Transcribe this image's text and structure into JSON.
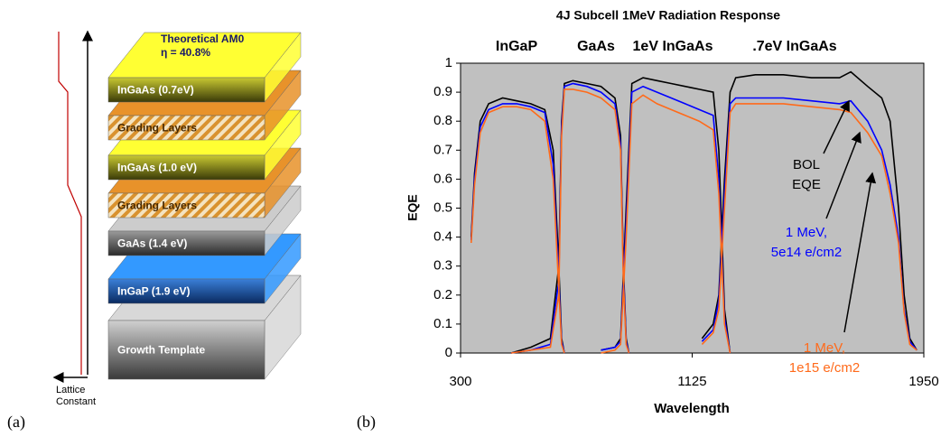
{
  "diagram": {
    "panel_label": "(a)",
    "top_label": [
      "Theoretical AM0",
      "η = 40.8%"
    ],
    "layers": [
      "InGaAs (0.7eV)",
      "Grading Layers",
      "InGaAs (1.0 eV)",
      "Grading Layers",
      "GaAs  (1.4 eV)",
      "InGaP  (1.9 eV)",
      "Growth Template"
    ],
    "lattice_label": [
      "Lattice",
      "Constant"
    ]
  },
  "chart_data": {
    "type": "line",
    "panel_label": "(b)",
    "title": "4J Subcell 1MeV Radiation Response",
    "subcell_labels": [
      "InGaP",
      "GaAs",
      "1eV InGaAs",
      ".7eV InGaAs"
    ],
    "x_label": "Wavelength",
    "y_label": "EQE",
    "xlim": [
      300,
      1950
    ],
    "xticks": [
      300,
      1125,
      1950
    ],
    "ylim": [
      0,
      1
    ],
    "yticks": [
      0,
      0.1,
      0.2,
      0.3,
      0.4,
      0.5,
      0.6,
      0.7,
      0.8,
      0.9,
      1
    ],
    "background": "#c0c0c0",
    "x": [
      338,
      350,
      370,
      400,
      450,
      500,
      550,
      600,
      630,
      650,
      660,
      670,
      null,
      480,
      550,
      620,
      650,
      660,
      670,
      700,
      750,
      800,
      850,
      870,
      880,
      890,
      900,
      null,
      800,
      850,
      870,
      890,
      910,
      950,
      1000,
      1050,
      1100,
      1150,
      1200,
      1220,
      1240,
      1260,
      null,
      1160,
      1200,
      1220,
      1240,
      1260,
      1280,
      1350,
      1450,
      1550,
      1650,
      1690,
      1750,
      1800,
      1830,
      1860,
      1880,
      1900,
      1925
    ],
    "series": [
      {
        "label": [
          "BOL",
          "EQE"
        ],
        "color": "#000000",
        "values": [
          0.4,
          0.62,
          0.8,
          0.86,
          0.88,
          0.87,
          0.86,
          0.84,
          0.7,
          0.3,
          0.05,
          0,
          null,
          0,
          0.02,
          0.05,
          0.3,
          0.8,
          0.93,
          0.94,
          0.93,
          0.92,
          0.88,
          0.75,
          0.3,
          0.05,
          0,
          null,
          0.01,
          0.02,
          0.05,
          0.5,
          0.93,
          0.95,
          0.94,
          0.93,
          0.92,
          0.91,
          0.9,
          0.7,
          0.15,
          0,
          null,
          0.05,
          0.1,
          0.2,
          0.6,
          0.9,
          0.95,
          0.96,
          0.96,
          0.95,
          0.95,
          0.97,
          0.92,
          0.88,
          0.8,
          0.5,
          0.2,
          0.05,
          0.01
        ]
      },
      {
        "label": [
          "1 MeV,",
          "5e14 e/cm2"
        ],
        "color": "#0000ff",
        "values": [
          0.39,
          0.6,
          0.78,
          0.84,
          0.86,
          0.86,
          0.85,
          0.83,
          0.65,
          0.25,
          0.04,
          0,
          null,
          0,
          0.01,
          0.03,
          0.25,
          0.78,
          0.92,
          0.93,
          0.92,
          0.9,
          0.86,
          0.72,
          0.28,
          0.04,
          0,
          null,
          0.01,
          0.02,
          0.04,
          0.45,
          0.9,
          0.92,
          0.9,
          0.88,
          0.86,
          0.84,
          0.82,
          0.6,
          0.12,
          0,
          null,
          0.04,
          0.08,
          0.18,
          0.55,
          0.86,
          0.88,
          0.88,
          0.88,
          0.87,
          0.86,
          0.87,
          0.8,
          0.7,
          0.58,
          0.4,
          0.15,
          0.04,
          0.01
        ]
      },
      {
        "label": [
          "1 MeV,",
          "1e15 e/cm2"
        ],
        "color": "#ff6a1a",
        "values": [
          0.38,
          0.58,
          0.76,
          0.83,
          0.85,
          0.85,
          0.84,
          0.8,
          0.6,
          0.22,
          0.03,
          0,
          null,
          0,
          0.01,
          0.02,
          0.2,
          0.75,
          0.91,
          0.91,
          0.9,
          0.88,
          0.84,
          0.7,
          0.25,
          0.03,
          0,
          null,
          0,
          0.01,
          0.03,
          0.4,
          0.86,
          0.89,
          0.86,
          0.84,
          0.82,
          0.8,
          0.77,
          0.55,
          0.1,
          0,
          null,
          0.03,
          0.07,
          0.15,
          0.5,
          0.83,
          0.86,
          0.86,
          0.86,
          0.85,
          0.84,
          0.83,
          0.76,
          0.68,
          0.55,
          0.38,
          0.14,
          0.03,
          0.01
        ]
      }
    ]
  }
}
